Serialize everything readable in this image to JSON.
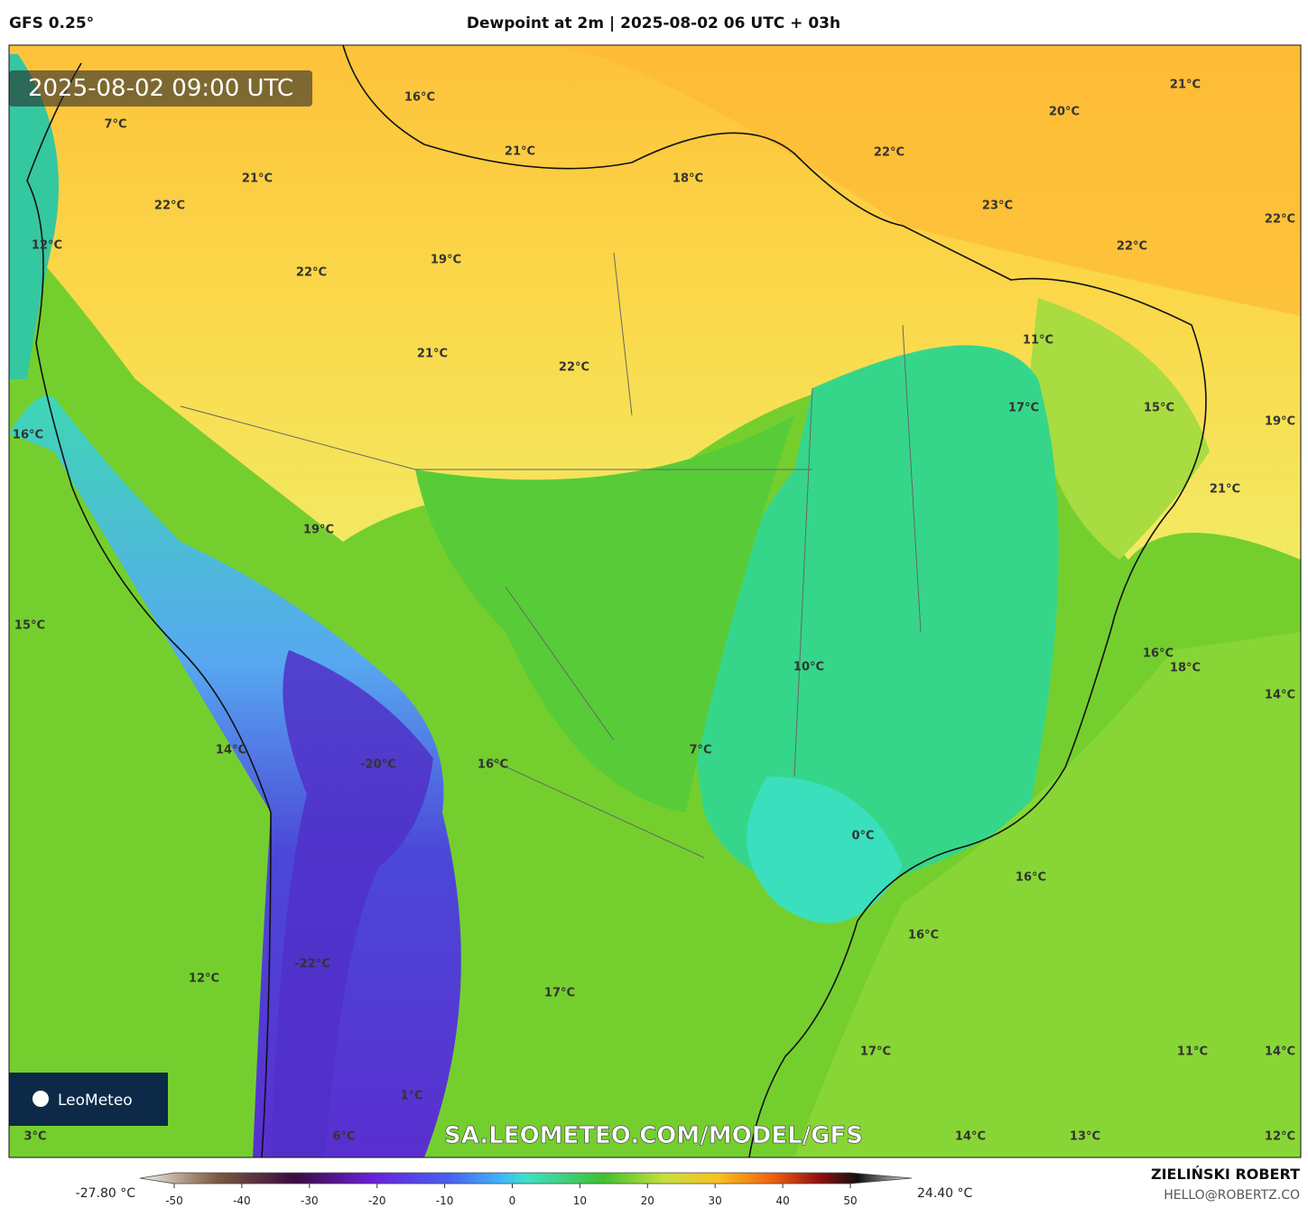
{
  "header": {
    "model": "GFS 0.25°",
    "title": "Dewpoint at 2m | 2025-08-02 06 UTC + 03h"
  },
  "map": {
    "timestamp": "2025-08-02 09:00 UTC",
    "labels": [
      "16°C",
      "7°C",
      "21°C",
      "18°C",
      "21°C",
      "22°C",
      "12°C",
      "22°C",
      "19°C",
      "21°C",
      "22°C",
      "21°C",
      "20°C",
      "22°C",
      "23°C",
      "22°C",
      "22°C",
      "11°C",
      "17°C",
      "15°C",
      "19°C",
      "16°C",
      "21°C",
      "19°C",
      "15°C",
      "16°C",
      "18°C",
      "14°C",
      "10°C",
      "14°C",
      "-20°C",
      "16°C",
      "7°C",
      "0°C",
      "16°C",
      "16°C",
      "12°C",
      "-22°C",
      "17°C",
      "17°C",
      "11°C",
      "14°C",
      "1°C",
      "3°C",
      "6°C",
      "14°C",
      "13°C",
      "12°C"
    ],
    "watermark": "SA.LEOMETEO.COM/MODEL/GFS",
    "logo": "LeoMeteo"
  },
  "colorbar": {
    "min_label": "-27.80 °C",
    "max_label": "24.40 °C",
    "ticks": [
      -50,
      -40,
      -30,
      -20,
      -10,
      0,
      10,
      20,
      30,
      40,
      50
    ]
  },
  "footer": {
    "author": "ZIELIŃSKI ROBERT",
    "email": "HELLO@ROBERTZ.CO"
  }
}
